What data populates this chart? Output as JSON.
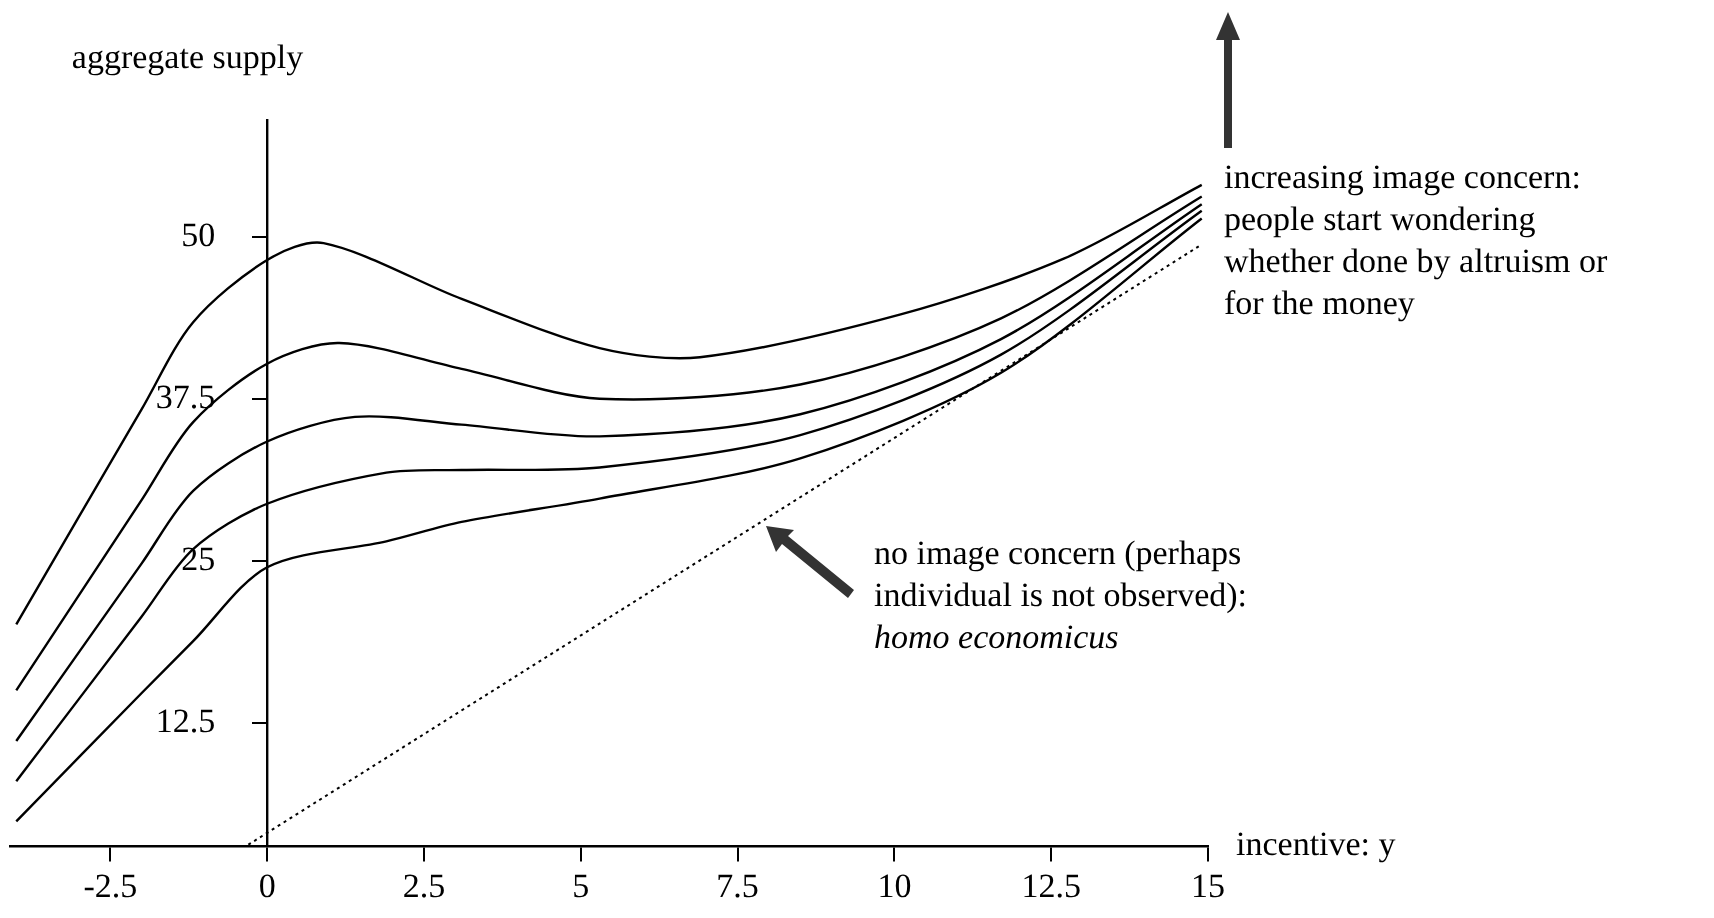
{
  "chart_data": {
    "type": "line",
    "xlabel": "incentive: y",
    "ylabel": "aggregate supply",
    "xlim": [
      -4.1,
      15
    ],
    "ylim": [
      3,
      59
    ],
    "xticks": [
      -2.5,
      0,
      2.5,
      5,
      7.5,
      10,
      12.5,
      15
    ],
    "yticks": [
      12.5,
      25,
      37.5,
      50
    ],
    "grid": false,
    "legend": false,
    "marker": "none",
    "series": [
      {
        "color": "#000000",
        "x": [
          -4.0,
          -2,
          -1.18,
          0,
          0.9,
          3.1,
          5.3,
          6.9,
          10.1,
          12.7,
          14.9
        ],
        "values": [
          20.1,
          36.7,
          43.4,
          48.2,
          49.5,
          45.2,
          41.4,
          40.7,
          44,
          48.3,
          54
        ]
      },
      {
        "color": "#000000",
        "x": [
          -4.0,
          -2,
          -1.18,
          0,
          1.15,
          3.1,
          5.3,
          8.5,
          11.7,
          14.9
        ],
        "values": [
          15,
          29.7,
          35.7,
          40.2,
          41.8,
          39.8,
          37.5,
          38.6,
          43.7,
          53.1
        ]
      },
      {
        "color": "#000000",
        "x": [
          -4.0,
          -2,
          -1.18,
          0,
          1.4,
          3.1,
          5.3,
          8.5,
          11.7,
          14.9
        ],
        "values": [
          11.1,
          24.8,
          30.4,
          34.2,
          36.1,
          35.5,
          34.6,
          36.3,
          42.1,
          52.5
        ]
      },
      {
        "color": "#000000",
        "x": [
          -4.0,
          -2,
          -1.18,
          0,
          1.9,
          3.1,
          5.3,
          8.5,
          11.7,
          14.9
        ],
        "values": [
          8,
          20.7,
          25.9,
          29.4,
          31.8,
          32,
          32.2,
          34.7,
          40.9,
          52
        ]
      },
      {
        "color": "#000000",
        "x": [
          -4.0,
          -2,
          -1.18,
          0,
          1.9,
          3.1,
          5.3,
          8.5,
          11.7,
          14.9
        ],
        "values": [
          4.9,
          14.8,
          18.8,
          24.5,
          26.5,
          28,
          29.8,
          32.9,
          39.5,
          51.4
        ]
      },
      {
        "color": "#000000",
        "line_style": "dotted",
        "x": [
          -0.3,
          14.9
        ],
        "values": [
          3.1,
          49.4
        ]
      }
    ],
    "annotations": [
      "increasing image concern:\npeople start wondering\nwhether done by altruism or\nfor the money",
      "no image concern (perhaps\nindividual is not observed):",
      "homo economicus"
    ]
  }
}
